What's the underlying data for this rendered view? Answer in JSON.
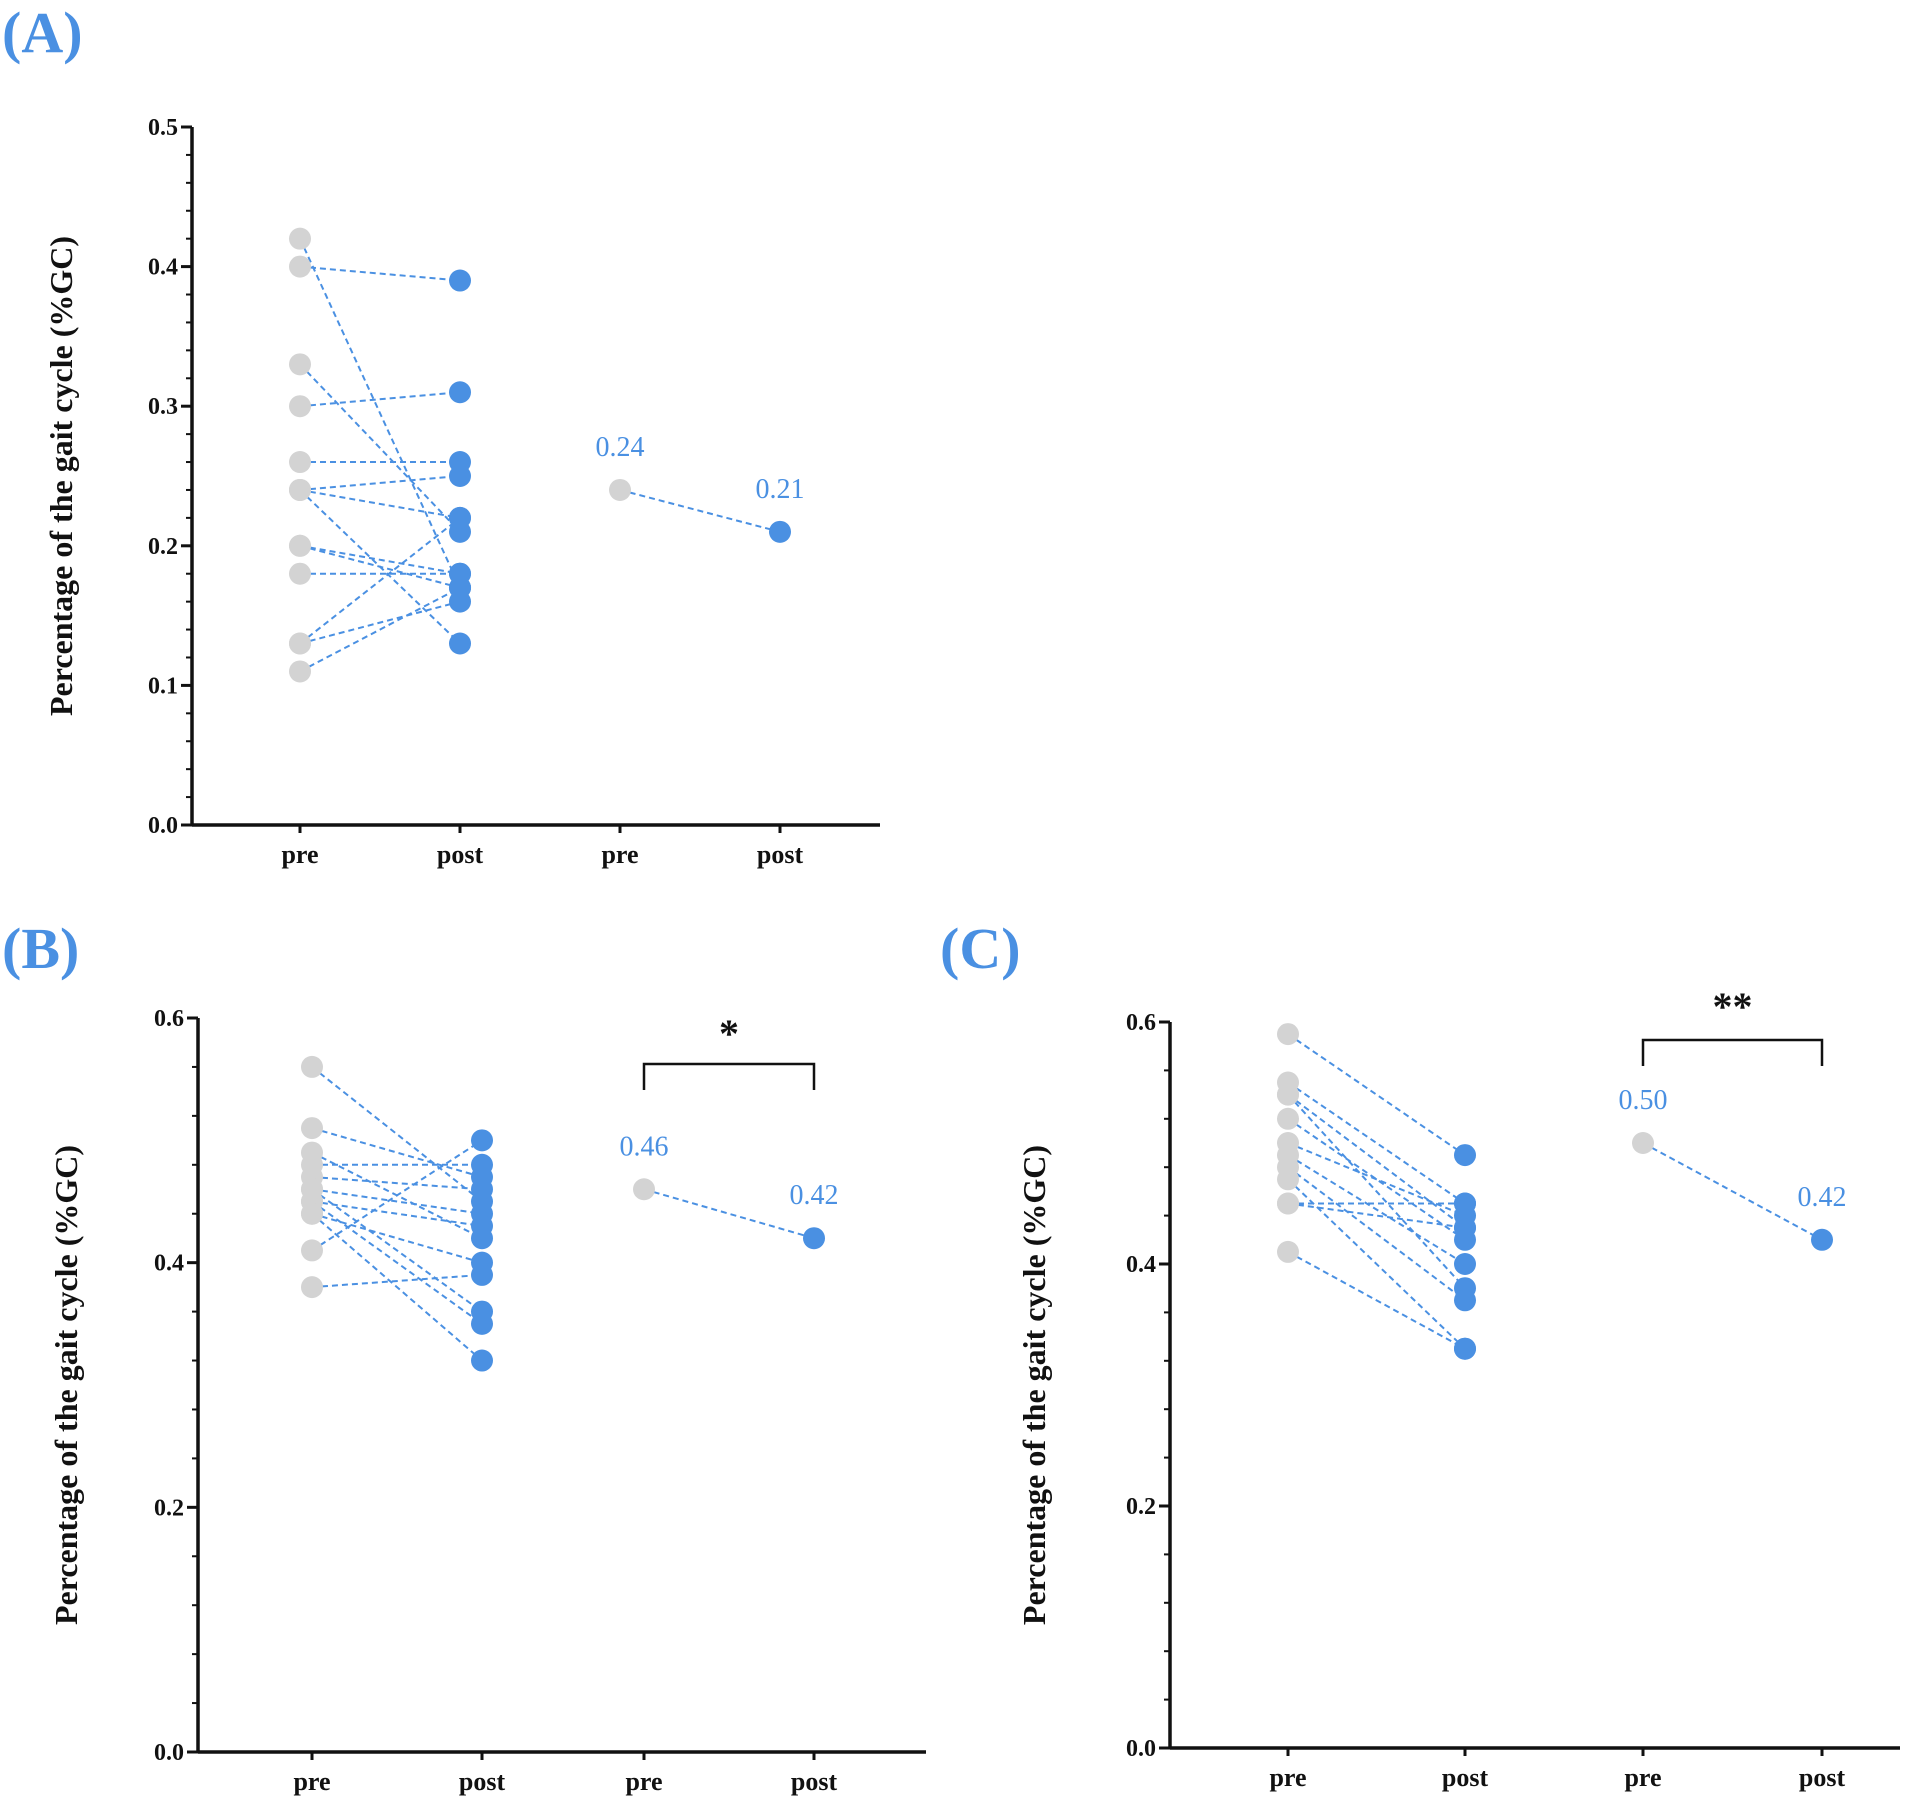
{
  "colors": {
    "pre": "#d3d3d3",
    "post": "#4a90e2",
    "line": "#4a90e2",
    "label": "#4a90e2",
    "axis": "#111111"
  },
  "chart_data": [
    {
      "panel": "(A)",
      "type": "scatter",
      "ylabel": "Percentage of the gait cycle (%GC)",
      "categories": [
        "pre",
        "post",
        "pre",
        "post"
      ],
      "ylim": [
        0,
        0.5
      ],
      "yticks": [
        "0.0",
        "0.1",
        "0.2",
        "0.3",
        "0.4",
        "0.5"
      ],
      "yticks_values": [
        0,
        0.1,
        0.2,
        0.3,
        0.4,
        0.5
      ],
      "pairs": [
        [
          0.42,
          0.17
        ],
        [
          0.4,
          0.39
        ],
        [
          0.33,
          0.21
        ],
        [
          0.3,
          0.31
        ],
        [
          0.26,
          0.26
        ],
        [
          0.24,
          0.25
        ],
        [
          0.24,
          0.22
        ],
        [
          0.24,
          0.13
        ],
        [
          0.2,
          0.18
        ],
        [
          0.2,
          0.17
        ],
        [
          0.18,
          0.18
        ],
        [
          0.13,
          0.22
        ],
        [
          0.13,
          0.16
        ],
        [
          0.11,
          0.17
        ]
      ],
      "mean": {
        "pre": 0.24,
        "post": 0.21,
        "pre_label": "0.24",
        "post_label": "0.21"
      },
      "significance": ""
    },
    {
      "panel": "(B)",
      "type": "scatter",
      "ylabel": "Percentage of the gait cycle (%GC)",
      "categories": [
        "pre",
        "post",
        "pre",
        "post"
      ],
      "ylim": [
        0,
        0.6
      ],
      "yticks": [
        "0.0",
        "0.2",
        "0.4",
        "0.6"
      ],
      "yticks_values": [
        0,
        0.2,
        0.4,
        0.6
      ],
      "pairs": [
        [
          0.56,
          0.45
        ],
        [
          0.51,
          0.47
        ],
        [
          0.49,
          0.42
        ],
        [
          0.48,
          0.48
        ],
        [
          0.47,
          0.46
        ],
        [
          0.46,
          0.44
        ],
        [
          0.46,
          0.36
        ],
        [
          0.45,
          0.43
        ],
        [
          0.45,
          0.35
        ],
        [
          0.44,
          0.4
        ],
        [
          0.44,
          0.32
        ],
        [
          0.41,
          0.5
        ],
        [
          0.38,
          0.39
        ]
      ],
      "mean": {
        "pre": 0.46,
        "post": 0.42,
        "pre_label": "0.46",
        "post_label": "0.42"
      },
      "significance": "*"
    },
    {
      "panel": "(C)",
      "type": "scatter",
      "ylabel": "Percentage of the gait cycle (%GC)",
      "categories": [
        "pre",
        "post",
        "pre",
        "post"
      ],
      "ylim": [
        0,
        0.6
      ],
      "yticks": [
        "0.0",
        "0.2",
        "0.4",
        "0.6"
      ],
      "yticks_values": [
        0,
        0.2,
        0.4,
        0.6
      ],
      "pairs": [
        [
          0.59,
          0.49
        ],
        [
          0.55,
          0.45
        ],
        [
          0.54,
          0.43
        ],
        [
          0.54,
          0.38
        ],
        [
          0.52,
          0.42
        ],
        [
          0.5,
          0.44
        ],
        [
          0.49,
          0.4
        ],
        [
          0.48,
          0.37
        ],
        [
          0.47,
          0.33
        ],
        [
          0.45,
          0.43
        ],
        [
          0.45,
          0.45
        ],
        [
          0.41,
          0.33
        ]
      ],
      "mean": {
        "pre": 0.5,
        "post": 0.42,
        "pre_label": "0.50",
        "post_label": "0.42"
      },
      "significance": "**"
    }
  ]
}
